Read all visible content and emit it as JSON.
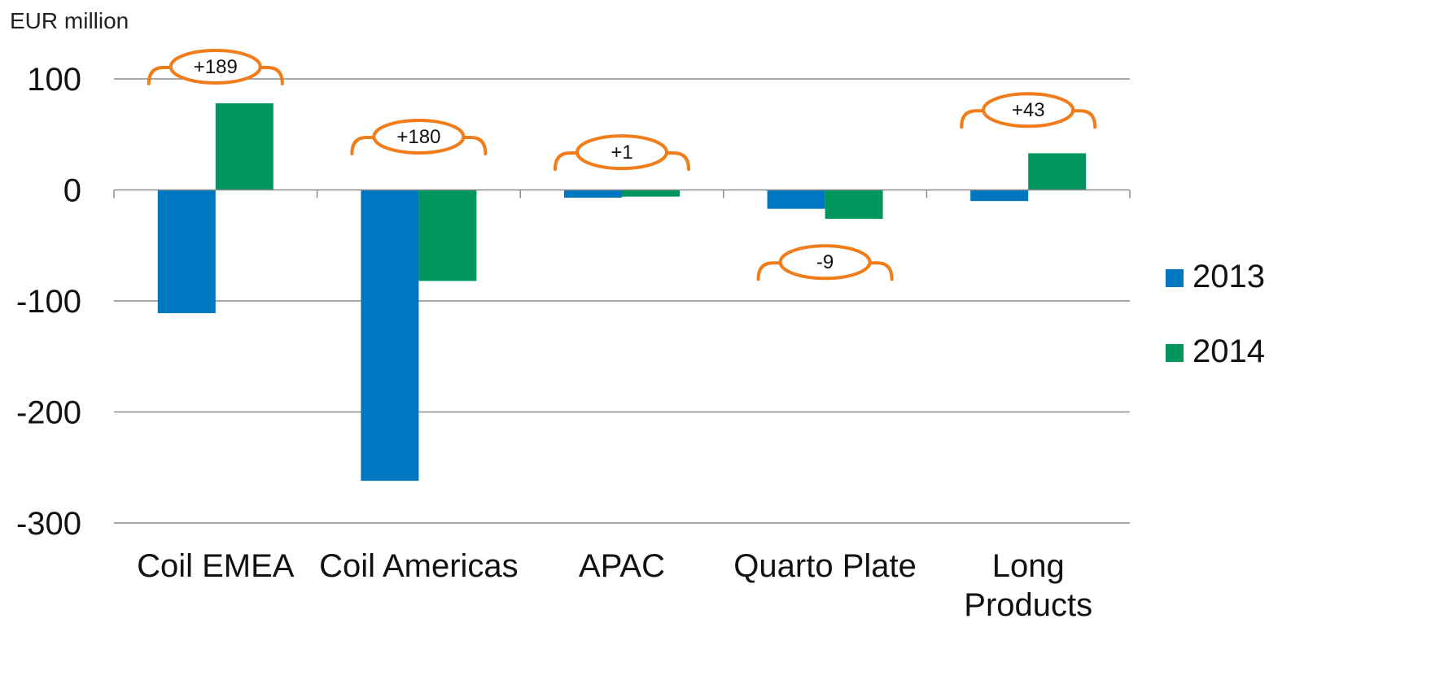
{
  "chart_data": {
    "type": "bar",
    "unit_label": "EUR million",
    "categories": [
      [
        "Coil EMEA"
      ],
      [
        "Coil Americas"
      ],
      [
        "APAC"
      ],
      [
        "Quarto Plate"
      ],
      [
        "Long",
        "Products"
      ]
    ],
    "series": [
      {
        "name": "2013",
        "color": "#0077c0",
        "values": [
          -111,
          -262,
          -7,
          -17,
          -10
        ]
      },
      {
        "name": "2014",
        "color": "#00965e",
        "values": [
          78,
          -82,
          -6,
          -26,
          33
        ]
      }
    ],
    "ylim": [
      -300,
      100
    ],
    "yticks": [
      "100",
      "0",
      "-100",
      "-200",
      "-300"
    ],
    "ytick_values": [
      100,
      0,
      -100,
      -200,
      -300
    ],
    "grid": true,
    "legend_position": "right",
    "annotations": [
      {
        "label": "+189",
        "category_index": 0,
        "value": 100,
        "color": "#f07d1a"
      },
      {
        "label": "+180",
        "category_index": 1,
        "value": 37,
        "color": "#f07d1a"
      },
      {
        "label": "+1",
        "category_index": 2,
        "value": 23,
        "color": "#f07d1a"
      },
      {
        "label": "-9",
        "category_index": 3,
        "value": -76,
        "color": "#f07d1a"
      },
      {
        "label": "+43",
        "category_index": 4,
        "value": 61,
        "color": "#f07d1a"
      }
    ]
  }
}
